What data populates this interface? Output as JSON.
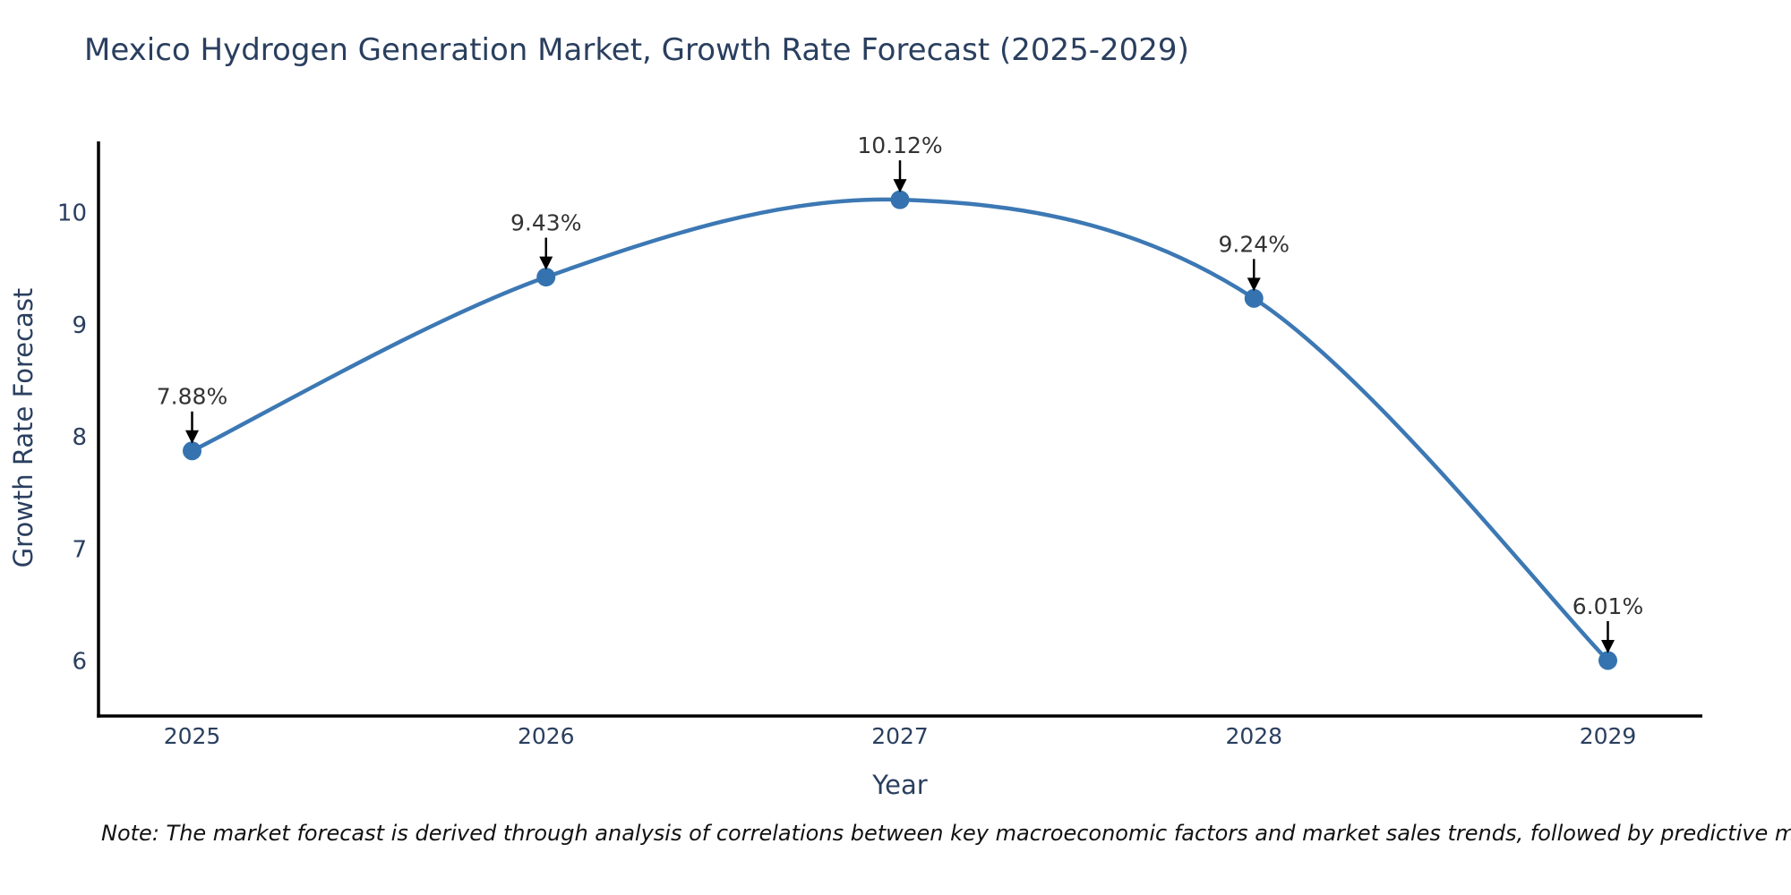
{
  "title": "Mexico Hydrogen Generation Market, Growth Rate Forecast (2025-2029)",
  "note": "Note: The market forecast is derived through analysis of correlations between key macroeconomic factors and market sales trends, followed by predictive modeling to project future sales.",
  "colors": {
    "title_text": "#2a3f5f",
    "axis_title_text": "#2a3f5f",
    "tick_text": "#2a3f5f",
    "axis_line": "#000000",
    "series_line": "#3c78b4",
    "marker_fill": "#3573b0",
    "annotation_text": "#333333",
    "annotation_arrow": "#000000",
    "background": "#ffffff"
  },
  "chart_data": {
    "type": "line",
    "title": "Mexico Hydrogen Generation Market, Growth Rate Forecast (2025-2029)",
    "xlabel": "Year",
    "ylabel": "Growth Rate Forecast",
    "categories": [
      "2025",
      "2026",
      "2027",
      "2028",
      "2029"
    ],
    "values": [
      7.88,
      9.43,
      10.12,
      9.24,
      6.01
    ],
    "point_labels": [
      "7.88%",
      "9.43%",
      "10.12%",
      "9.24%",
      "6.01%"
    ],
    "yticks": [
      6,
      7,
      8,
      9,
      10
    ],
    "ylim": [
      5.515,
      10.64
    ],
    "grid": false,
    "legend": false,
    "marker_style": "circle",
    "annotation_style": "label-above-with-down-arrow"
  }
}
